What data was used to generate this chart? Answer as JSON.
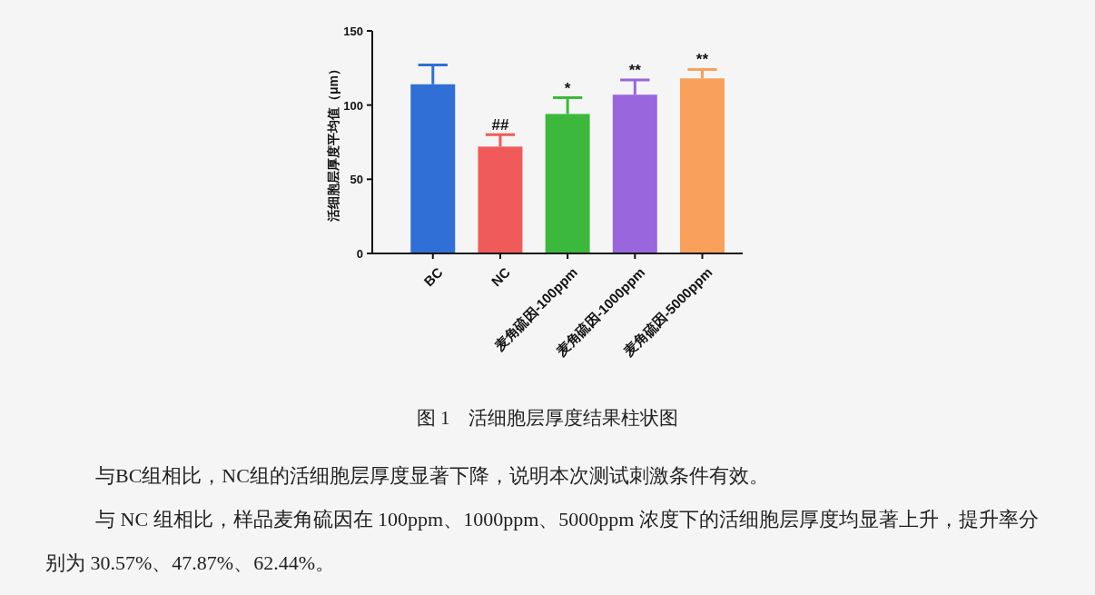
{
  "chart_data": {
    "type": "bar",
    "ylabel": "活细胞层厚度平均值（μm）",
    "categories": [
      "BC",
      "NC",
      "麦角硫因-100ppm",
      "麦角硫因-1000ppm",
      "麦角硫因-5000ppm"
    ],
    "values": [
      114,
      72,
      94,
      107,
      118
    ],
    "errors": [
      [
        114,
        127
      ],
      [
        72,
        80
      ],
      [
        94,
        105
      ],
      [
        107,
        117
      ],
      [
        118,
        124
      ]
    ],
    "colors": [
      "#2f6fd6",
      "#f05a5a",
      "#3cb83c",
      "#9966dd",
      "#f9a05a"
    ],
    "ylim": [
      0,
      150
    ],
    "yticks": [
      0,
      50,
      100,
      150
    ],
    "grid": false,
    "annotations": [
      {
        "text": "##",
        "x": "NC",
        "y": 80
      },
      {
        "text": "*",
        "x": "麦角硫因-100ppm",
        "y": 105
      },
      {
        "text": "**",
        "x": "麦角硫因-1000ppm",
        "y": 117
      },
      {
        "text": "**",
        "x": "麦角硫因-5000ppm",
        "y": 124
      },
      "图 1　活细胞层厚度结果柱状图",
      "与BC组相比，NC组的活细胞层厚度显著下降，说明本次测试刺激条件有效。",
      "与 NC 组相比，样品麦角硫因在 100ppm、1000ppm、5000ppm 浓度下的活细胞层厚度均显著上升，提升率分别为 30.57%、47.87%、62.44%。"
    ]
  }
}
